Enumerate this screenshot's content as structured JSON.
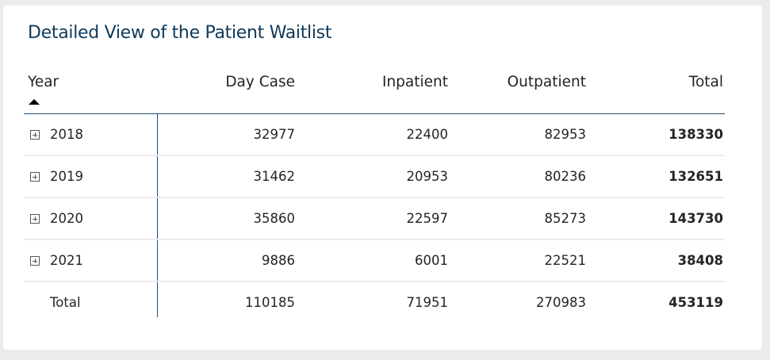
{
  "title": "Detailed View of the Patient Waitlist",
  "columns": {
    "year": "Year",
    "day_case": "Day Case",
    "inpatient": "Inpatient",
    "outpatient": "Outpatient",
    "total": "Total"
  },
  "rows": [
    {
      "year": "2018",
      "day_case": "32977",
      "inpatient": "22400",
      "outpatient": "82953",
      "total": "138330"
    },
    {
      "year": "2019",
      "day_case": "31462",
      "inpatient": "20953",
      "outpatient": "80236",
      "total": "132651"
    },
    {
      "year": "2020",
      "day_case": "35860",
      "inpatient": "22597",
      "outpatient": "85273",
      "total": "143730"
    },
    {
      "year": "2021",
      "day_case": "9886",
      "inpatient": "6001",
      "outpatient": "22521",
      "total": "38408"
    }
  ],
  "totals": {
    "label": "Total",
    "day_case": "110185",
    "inpatient": "71951",
    "outpatient": "270983",
    "total": "453119"
  }
}
